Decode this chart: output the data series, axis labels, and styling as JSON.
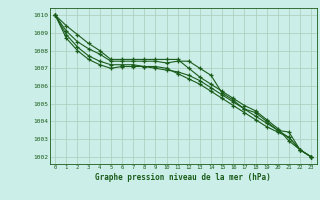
{
  "x": [
    0,
    1,
    2,
    3,
    4,
    5,
    6,
    7,
    8,
    9,
    10,
    11,
    12,
    13,
    14,
    15,
    16,
    17,
    18,
    19,
    20,
    21,
    22,
    23
  ],
  "series1": [
    1010.0,
    1009.4,
    1008.9,
    1008.4,
    1008.0,
    1007.5,
    1007.5,
    1007.5,
    1007.5,
    1007.5,
    1007.5,
    1007.5,
    1007.0,
    1006.5,
    1006.1,
    1005.7,
    1005.3,
    1004.9,
    1004.6,
    1004.1,
    1003.6,
    1002.9,
    1002.4,
    1002.0
  ],
  "series2": [
    1010.0,
    1009.1,
    1008.5,
    1008.1,
    1007.8,
    1007.4,
    1007.4,
    1007.4,
    1007.4,
    1007.4,
    1007.3,
    1007.4,
    1007.4,
    1007.0,
    1006.6,
    1005.6,
    1005.2,
    1004.7,
    1004.5,
    1004.0,
    1003.5,
    1003.4,
    1002.4,
    1002.0
  ],
  "series3": [
    1010.0,
    1008.7,
    1008.0,
    1007.5,
    1007.2,
    1007.0,
    1007.1,
    1007.1,
    1007.1,
    1007.1,
    1007.0,
    1006.7,
    1006.4,
    1006.1,
    1005.7,
    1005.3,
    1004.9,
    1004.5,
    1004.1,
    1003.7,
    1003.4,
    1003.1,
    1002.4,
    1002.0
  ],
  "series4": [
    1010.0,
    1008.9,
    1008.2,
    1007.7,
    1007.4,
    1007.2,
    1007.2,
    1007.2,
    1007.1,
    1007.0,
    1006.9,
    1006.8,
    1006.6,
    1006.3,
    1005.9,
    1005.5,
    1005.1,
    1004.7,
    1004.3,
    1003.9,
    1003.5,
    1003.1,
    1002.4,
    1002.0
  ],
  "bg_color": "#cceee8",
  "line_color": "#1a5c1a",
  "grid_color_major": "#aaccbb",
  "grid_color_minor": "#bbddcc",
  "xlabel": "Graphe pression niveau de la mer (hPa)",
  "ylabel_ticks": [
    1002,
    1003,
    1004,
    1005,
    1006,
    1007,
    1008,
    1009,
    1010
  ],
  "xlim": [
    -0.5,
    23.5
  ],
  "ylim": [
    1001.6,
    1010.4
  ],
  "figsize": [
    3.2,
    2.0
  ],
  "dpi": 100
}
